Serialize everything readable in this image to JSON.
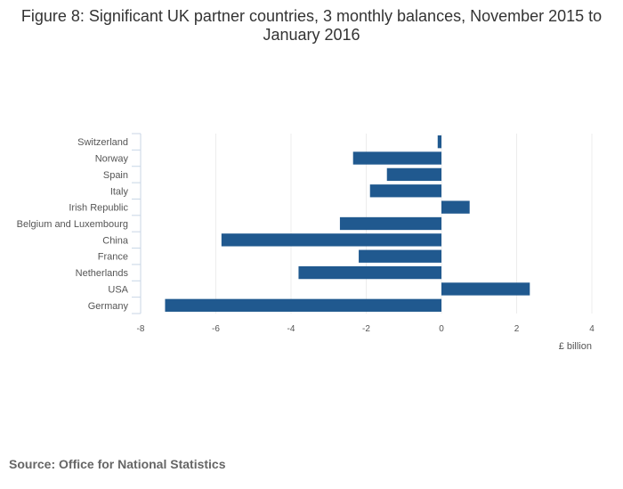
{
  "chart_data": {
    "type": "bar",
    "orientation": "horizontal",
    "title": "Figure 8: Significant UK partner countries, 3 monthly balances, November 2015 to January 2016",
    "xlabel": "£ billion",
    "ylabel": "",
    "categories": [
      "Switzerland",
      "Norway",
      "Spain",
      "Italy",
      "Irish Republic",
      "Belgium and Luxembourg",
      "China",
      "France",
      "Netherlands",
      "USA",
      "Germany"
    ],
    "values": [
      -0.1,
      -2.35,
      -1.45,
      -1.9,
      0.75,
      -2.7,
      -5.85,
      -2.2,
      -3.8,
      2.35,
      -7.35
    ],
    "xlim": [
      -8,
      4
    ],
    "xticks": [
      -8,
      -6,
      -4,
      -2,
      0,
      2,
      4
    ],
    "grid": true,
    "bar_color": "#20598f",
    "source": "Source: Office for National Statistics"
  }
}
